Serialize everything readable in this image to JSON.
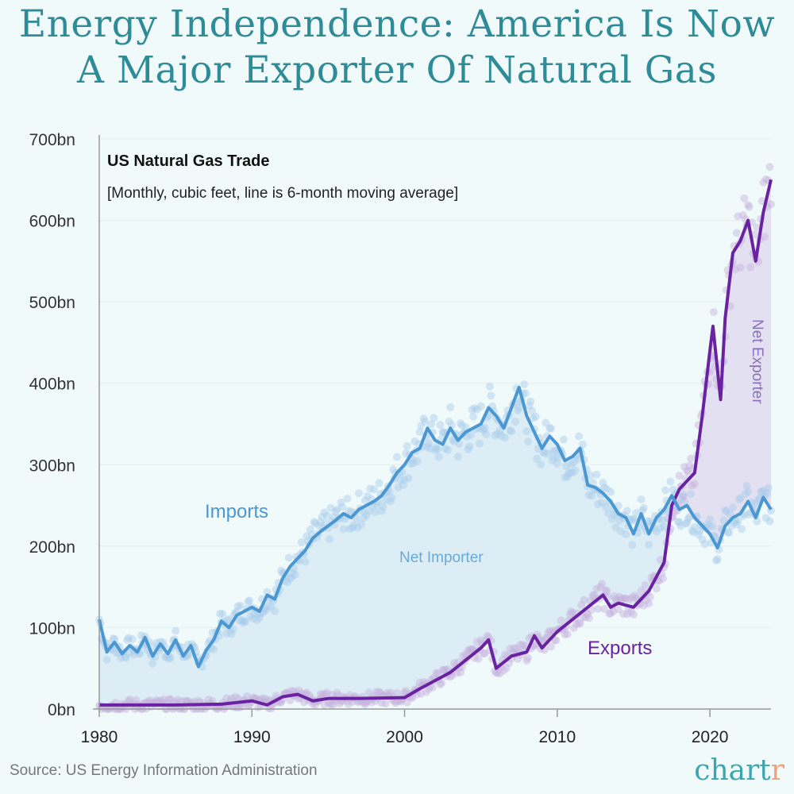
{
  "title_line1": "Energy Independence: America Is Now",
  "title_line2": "A Major Exporter Of Natural Gas",
  "source": "Source: US Energy Information Administration",
  "logo": {
    "main": "chart",
    "accent": "r"
  },
  "colors": {
    "title": "#2e8b98",
    "imports": "#4a97d2",
    "exports": "#6a23a0",
    "net_importer_fill": "#dcedf5",
    "net_exporter_fill": "#e3e1f1",
    "background": "#f1fafa"
  },
  "chart_data": {
    "type": "line",
    "title": "US Natural Gas Trade",
    "subtitle": "[Monthly, cubic feet, line is 6-month moving average]",
    "xlabel": "",
    "ylabel": "",
    "xlim": [
      1980,
      2024
    ],
    "ylim": [
      0,
      700
    ],
    "x_ticks": [
      "1980",
      "1990",
      "2000",
      "2010",
      "2020"
    ],
    "y_ticks": [
      "0bn",
      "100bn",
      "200bn",
      "300bn",
      "400bn",
      "500bn",
      "600bn",
      "700bn"
    ],
    "grid": "horizontal",
    "annotations": {
      "imports": "Imports",
      "exports": "Exports",
      "net_importer": "Net Importer",
      "net_exporter": "Net Exporter"
    },
    "series": [
      {
        "name": "Imports",
        "points": [
          [
            1980,
            110
          ],
          [
            1980.5,
            70
          ],
          [
            1981,
            82
          ],
          [
            1981.5,
            68
          ],
          [
            1982,
            78
          ],
          [
            1982.5,
            70
          ],
          [
            1983,
            88
          ],
          [
            1983.5,
            65
          ],
          [
            1984,
            80
          ],
          [
            1984.5,
            68
          ],
          [
            1985,
            85
          ],
          [
            1985.5,
            65
          ],
          [
            1986,
            78
          ],
          [
            1986.5,
            52
          ],
          [
            1987,
            72
          ],
          [
            1987.5,
            85
          ],
          [
            1988,
            108
          ],
          [
            1988.5,
            100
          ],
          [
            1989,
            115
          ],
          [
            1990,
            125
          ],
          [
            1990.5,
            120
          ],
          [
            1991,
            140
          ],
          [
            1991.5,
            135
          ],
          [
            1992,
            160
          ],
          [
            1992.5,
            175
          ],
          [
            1993,
            185
          ],
          [
            1993.5,
            195
          ],
          [
            1994,
            210
          ],
          [
            1994.5,
            218
          ],
          [
            1995,
            225
          ],
          [
            1995.5,
            232
          ],
          [
            1996,
            240
          ],
          [
            1996.5,
            235
          ],
          [
            1997,
            245
          ],
          [
            1997.5,
            250
          ],
          [
            1998,
            255
          ],
          [
            1998.5,
            262
          ],
          [
            1999,
            275
          ],
          [
            1999.5,
            290
          ],
          [
            2000,
            300
          ],
          [
            2000.5,
            315
          ],
          [
            2001,
            320
          ],
          [
            2001.5,
            345
          ],
          [
            2002,
            330
          ],
          [
            2002.5,
            325
          ],
          [
            2003,
            345
          ],
          [
            2003.5,
            330
          ],
          [
            2004,
            340
          ],
          [
            2004.5,
            345
          ],
          [
            2005,
            350
          ],
          [
            2005.5,
            370
          ],
          [
            2006,
            360
          ],
          [
            2006.5,
            345
          ],
          [
            2007,
            370
          ],
          [
            2007.5,
            395
          ],
          [
            2008,
            360
          ],
          [
            2008.5,
            340
          ],
          [
            2009,
            320
          ],
          [
            2009.5,
            335
          ],
          [
            2010,
            325
          ],
          [
            2010.5,
            305
          ],
          [
            2011,
            310
          ],
          [
            2011.5,
            320
          ],
          [
            2012,
            275
          ],
          [
            2012.5,
            272
          ],
          [
            2013,
            265
          ],
          [
            2013.5,
            255
          ],
          [
            2014,
            240
          ],
          [
            2014.5,
            235
          ],
          [
            2015,
            215
          ],
          [
            2015.5,
            240
          ],
          [
            2016,
            215
          ],
          [
            2016.5,
            235
          ],
          [
            2017,
            245
          ],
          [
            2017.5,
            262
          ],
          [
            2018,
            245
          ],
          [
            2018.5,
            250
          ],
          [
            2019,
            235
          ],
          [
            2019.5,
            225
          ],
          [
            2020,
            215
          ],
          [
            2020.5,
            198
          ],
          [
            2021,
            225
          ],
          [
            2021.5,
            235
          ],
          [
            2022,
            240
          ],
          [
            2022.5,
            255
          ],
          [
            2023,
            235
          ],
          [
            2023.5,
            260
          ],
          [
            2024,
            245
          ]
        ]
      },
      {
        "name": "Exports",
        "points": [
          [
            1980,
            5
          ],
          [
            1982,
            5
          ],
          [
            1985,
            5
          ],
          [
            1988,
            6
          ],
          [
            1990,
            10
          ],
          [
            1991,
            5
          ],
          [
            1992,
            15
          ],
          [
            1993,
            18
          ],
          [
            1994,
            10
          ],
          [
            1995,
            13
          ],
          [
            1997,
            13
          ],
          [
            2000,
            14
          ],
          [
            2001,
            25
          ],
          [
            2002,
            35
          ],
          [
            2003,
            45
          ],
          [
            2004,
            60
          ],
          [
            2005,
            75
          ],
          [
            2005.5,
            85
          ],
          [
            2006,
            50
          ],
          [
            2007,
            65
          ],
          [
            2008,
            70
          ],
          [
            2008.5,
            90
          ],
          [
            2009,
            75
          ],
          [
            2010,
            95
          ],
          [
            2011,
            110
          ],
          [
            2012,
            125
          ],
          [
            2013,
            140
          ],
          [
            2013.5,
            125
          ],
          [
            2014,
            130
          ],
          [
            2015,
            125
          ],
          [
            2016,
            145
          ],
          [
            2017,
            180
          ],
          [
            2017.5,
            250
          ],
          [
            2018,
            270
          ],
          [
            2019,
            290
          ],
          [
            2019.5,
            360
          ],
          [
            2020,
            440
          ],
          [
            2020.2,
            470
          ],
          [
            2020.7,
            380
          ],
          [
            2021,
            480
          ],
          [
            2021.5,
            560
          ],
          [
            2022,
            575
          ],
          [
            2022.5,
            600
          ],
          [
            2023,
            550
          ],
          [
            2023.5,
            610
          ],
          [
            2024,
            650
          ]
        ]
      }
    ]
  }
}
